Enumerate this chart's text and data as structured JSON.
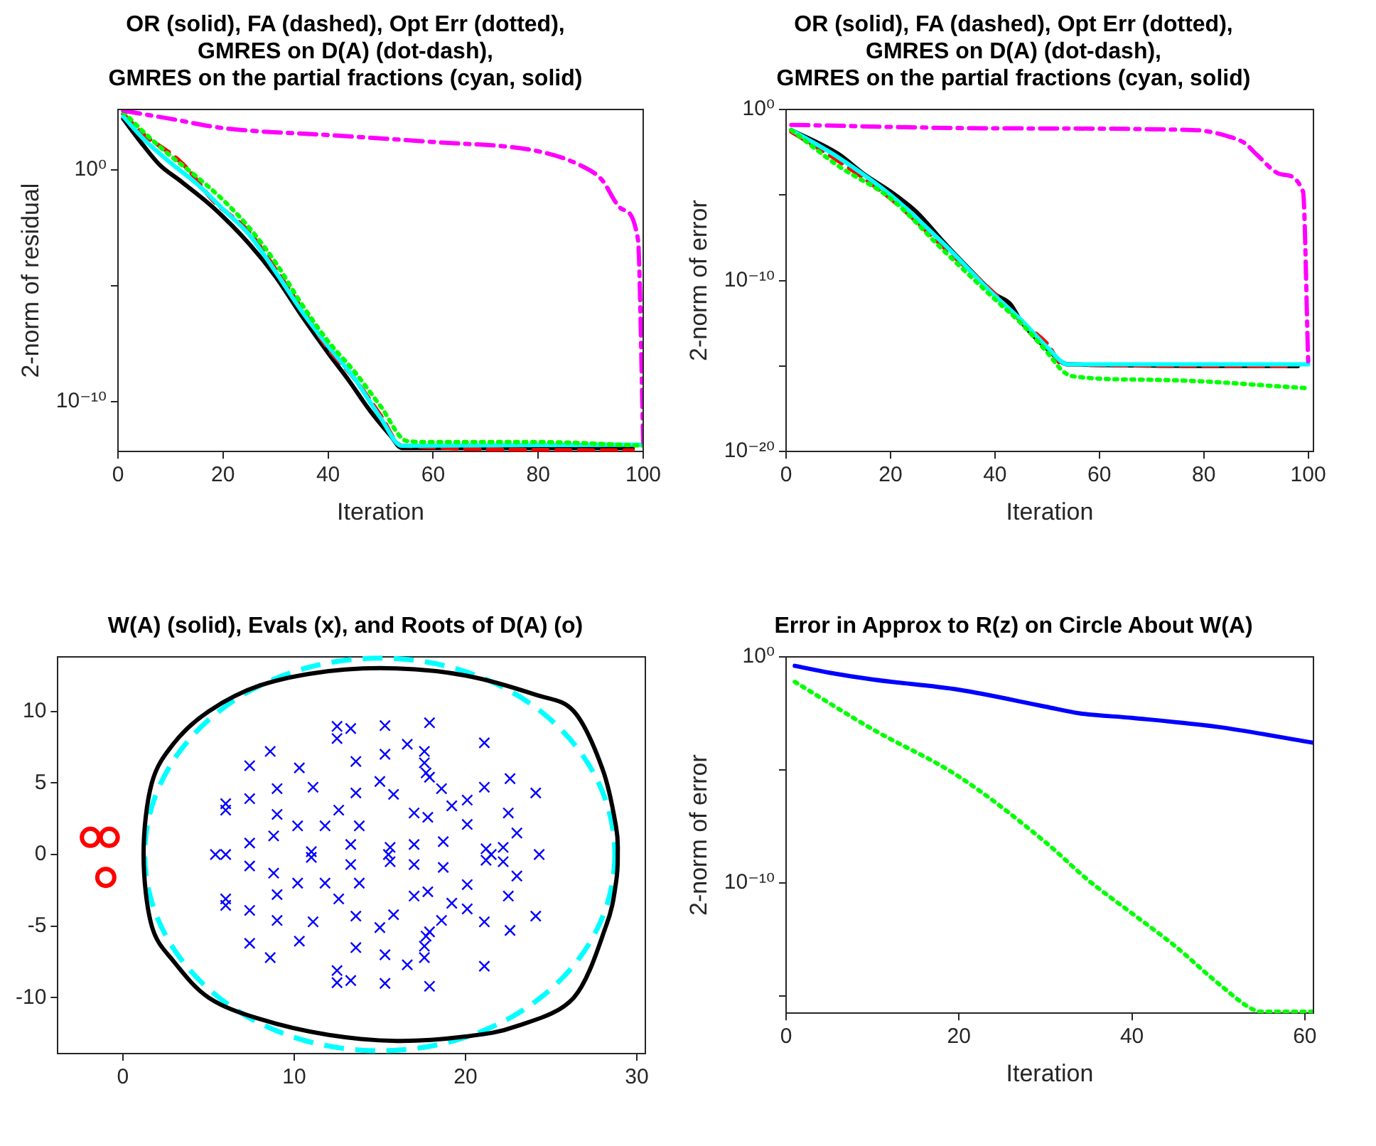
{
  "chart_data": [
    {
      "type": "line",
      "title": "OR (solid), FA (dashed), Opt Err (dotted),\nGMRES on D(A) (dot-dash),\nGMRES on the partial fractions (cyan, solid)",
      "xlabel": "Iteration",
      "ylabel": "2-norm of residual",
      "log": "y",
      "legend": false,
      "grid": false,
      "xlim": [
        0,
        100
      ],
      "xticks": [
        0,
        20,
        40,
        60,
        80,
        100
      ],
      "ylim": [
        7e-13,
        400
      ],
      "yticks": [
        {
          "value": 1,
          "label": "10⁰"
        },
        {
          "value": 1e-05,
          "label": null
        },
        {
          "value": 1e-10,
          "label": "10⁻¹⁰"
        }
      ],
      "series": [
        {
          "color": "#ff00ff",
          "line_style": "dashdot",
          "x": [
            1,
            10,
            20,
            40,
            60,
            80,
            88,
            92,
            96,
            99,
            100
          ],
          "values": [
            355,
            158,
            63,
            31.6,
            15.8,
            6.3,
            1.58,
            0.4,
            0.02,
            0.001,
            1.58e-12
          ]
        },
        {
          "color": "#00ff00",
          "line_style": "dotted",
          "x": [
            1,
            5,
            10,
            15,
            20,
            25,
            30,
            35,
            40,
            45,
            50,
            55,
            60,
            80,
            100
          ],
          "values": [
            316,
            40,
            4.0,
            0.5,
            0.05,
            0.00316,
            0.0001,
            1.58e-06,
            4e-08,
            2e-09,
            6.3e-11,
            2e-12,
            1.8e-12,
            1.8e-12,
            1.26e-12
          ]
        },
        {
          "color": "#00ffff",
          "line_style": "solid",
          "x": [
            1,
            5,
            10,
            15,
            20,
            25,
            30,
            35,
            40,
            45,
            50,
            54,
            100
          ],
          "values": [
            200,
            20,
            2.0,
            0.25,
            0.02,
            0.00158,
            4e-05,
            7.9e-07,
            2.5e-08,
            1e-09,
            2e-11,
            1.26e-12,
            1.4e-12
          ]
        },
        {
          "color": "#ff0000",
          "line_style": "dashed",
          "x": [
            1,
            5,
            10,
            13,
            18,
            25,
            30,
            35,
            40,
            45,
            50,
            54,
            98
          ],
          "values": [
            251,
            31.6,
            5.0,
            1.26,
            0.05,
            0.002,
            5e-05,
            1e-06,
            2e-08,
            1e-09,
            2.5e-11,
            1.26e-12,
            7.9e-13
          ]
        },
        {
          "color": "#000000",
          "line_style": "solid",
          "x": [
            1,
            5,
            8,
            12,
            18,
            25,
            30,
            35,
            40,
            44,
            48,
            52,
            54,
            98
          ],
          "values": [
            158,
            10,
            1.58,
            0.316,
            0.025,
            0.00063,
            2.5e-05,
            5e-07,
            1.26e-08,
            7.9e-10,
            4e-11,
            3.16e-12,
            1e-12,
            1e-12
          ]
        }
      ]
    },
    {
      "type": "line",
      "title": "OR (solid), FA (dashed), Opt Err (dotted),\nGMRES on D(A) (dot-dash),\nGMRES on the partial fractions (cyan, solid)",
      "xlabel": "Iteration",
      "ylabel": "2-norm of error",
      "log": "y",
      "legend": false,
      "grid": false,
      "xlim": [
        0,
        101
      ],
      "xticks": [
        0,
        20,
        40,
        60,
        80,
        100
      ],
      "ylim": [
        1e-20,
        1
      ],
      "yticks": [
        {
          "value": 1,
          "label": "10⁰"
        },
        {
          "value": 1e-05,
          "label": null
        },
        {
          "value": 1e-10,
          "label": "10⁻¹⁰"
        },
        {
          "value": 1e-15,
          "label": null
        },
        {
          "value": 1e-20,
          "label": "10⁻²⁰"
        }
      ],
      "series": [
        {
          "color": "#ff00ff",
          "line_style": "dashdot",
          "x": [
            1,
            40,
            78,
            85,
            88,
            90,
            95,
            99,
            100
          ],
          "values": [
            0.126,
            0.079,
            0.063,
            0.025,
            0.01,
            0.0025,
            0.000158,
            1.58e-05,
            1.26e-15
          ]
        },
        {
          "color": "#00ff00",
          "line_style": "dotted",
          "x": [
            1,
            10,
            20,
            30,
            40,
            45,
            50,
            53,
            55,
            70,
            80,
            95,
            100
          ],
          "values": [
            0.063,
            0.0005,
            6.3e-06,
            6.3e-09,
            7.9e-12,
            3.16e-13,
            6.3e-15,
            5e-16,
            2.5e-16,
            1.58e-16,
            1.26e-16,
            6.3e-17,
            5e-17
          ]
        },
        {
          "color": "#00ffff",
          "line_style": "solid",
          "x": [
            1,
            10,
            20,
            30,
            40,
            45,
            50,
            54,
            100
          ],
          "values": [
            0.063,
            0.00158,
            1e-05,
            1.58e-08,
            1.26e-11,
            5e-13,
            1.26e-14,
            1.26e-15,
            1.26e-15
          ]
        },
        {
          "color": "#ff0000",
          "line_style": "dashed",
          "x": [
            1,
            10,
            20,
            30,
            40,
            45,
            50,
            53,
            97
          ],
          "values": [
            0.05,
            0.001,
            6.3e-06,
            1e-08,
            1.58e-11,
            4e-13,
            2e-14,
            1.26e-15,
            1e-15
          ]
        },
        {
          "color": "#000000",
          "line_style": "solid",
          "x": [
            1,
            10,
            15,
            20,
            25,
            30,
            35,
            40,
            43,
            45,
            50,
            54,
            98
          ],
          "values": [
            0.063,
            0.0025,
            0.000158,
            1.58e-05,
            1e-06,
            2e-08,
            5e-10,
            1.58e-11,
            4e-12,
            4e-13,
            1e-14,
            1.26e-15,
            1e-15
          ]
        }
      ]
    },
    {
      "type": "scatter",
      "title": "W(A) (solid), Evals (x), and Roots of D(A) (o)",
      "legend": false,
      "grid": false,
      "xlim": [
        -3.8,
        30.5
      ],
      "xticks": [
        0,
        10,
        20,
        30
      ],
      "ylim": [
        -13.9,
        13.8
      ],
      "yticks": [
        -10,
        -5,
        0,
        5,
        10
      ],
      "series": [
        {
          "color": "#0000ff",
          "marker": "cross",
          "x": [
            6.0,
            6.0,
            7.4,
            7.4,
            7.4,
            8.6,
            9.0,
            9.0,
            8.8,
            10.3,
            11.1,
            10.2,
            11.8,
            12.5,
            12.5,
            13.3,
            13.6,
            13.6,
            12.6,
            13.8,
            13.3,
            15.3,
            15.3,
            15.0,
            15.8,
            15.6,
            17.9,
            16.6,
            17.6,
            17.6,
            17.7,
            17.9,
            18.6,
            17.0,
            17.8,
            17.0,
            18.7,
            19.2,
            20.1,
            21.1,
            21.1,
            20.1,
            22.6,
            24.1,
            22.5,
            23.0,
            22.2,
            21.2,
            11.0,
            6.0,
            6.0,
            7.4,
            7.4,
            7.4,
            8.6,
            9.0,
            9.0,
            8.8,
            10.3,
            11.1,
            10.2,
            11.8,
            12.5,
            12.5,
            13.3,
            13.6,
            13.6,
            12.6,
            13.8,
            13.3,
            15.3,
            15.3,
            15.0,
            15.8,
            15.6,
            17.9,
            16.6,
            17.6,
            17.6,
            17.7,
            17.9,
            18.6,
            17.0,
            17.8,
            17.0,
            18.7,
            19.2,
            20.1,
            21.1,
            21.1,
            20.1,
            22.6,
            24.1,
            22.5,
            23.0,
            22.2,
            21.2,
            11.0,
            5.4,
            6.0,
            15.5,
            21.5,
            24.3
          ],
          "values": [
            3.55,
            3.1,
            6.2,
            3.9,
            0.8,
            7.2,
            4.6,
            2.8,
            1.3,
            6.05,
            4.7,
            2.0,
            2.0,
            8.95,
            8.1,
            8.8,
            6.5,
            4.3,
            3.1,
            2.0,
            0.7,
            9.0,
            7.0,
            5.1,
            4.2,
            0.5,
            9.2,
            7.7,
            7.2,
            6.4,
            5.7,
            5.4,
            4.6,
            2.9,
            2.6,
            0.7,
            0.9,
            3.4,
            3.8,
            4.7,
            7.8,
            2.1,
            5.3,
            4.3,
            2.9,
            1.5,
            0.5,
            0.4,
            0.2,
            -3.55,
            -3.1,
            -6.2,
            -3.9,
            -0.8,
            -7.2,
            -4.6,
            -2.8,
            -1.3,
            -6.05,
            -4.7,
            -2.0,
            -2.0,
            -8.95,
            -8.1,
            -8.8,
            -6.5,
            -4.3,
            -3.1,
            -2.0,
            -0.7,
            -9.0,
            -7.0,
            -5.1,
            -4.2,
            -0.5,
            -9.2,
            -7.7,
            -7.2,
            -6.4,
            -5.7,
            -5.4,
            -4.6,
            -2.9,
            -2.6,
            -0.7,
            -0.9,
            -3.4,
            -3.8,
            -4.7,
            -7.8,
            -2.1,
            -5.3,
            -4.3,
            -2.9,
            -1.5,
            -0.5,
            -0.4,
            -0.2,
            0,
            0,
            0,
            0,
            0
          ]
        },
        {
          "color": "#ff0000",
          "marker": "circle",
          "x": [
            -1.9,
            -0.8,
            -1.0
          ],
          "values": [
            1.2,
            1.2,
            -1.6
          ]
        }
      ]
    },
    {
      "type": "line",
      "title": "Error in Approx to R(z) on Circle About W(A)",
      "xlabel": "Iteration",
      "ylabel": "2-norm of error",
      "log": "y",
      "legend": false,
      "grid": false,
      "xlim": [
        0,
        61
      ],
      "xticks": [
        0,
        20,
        40,
        60
      ],
      "ylim": [
        1.7e-16,
        1
      ],
      "yticks": [
        {
          "value": 1,
          "label": "10⁰"
        },
        {
          "value": 1e-05,
          "label": null
        },
        {
          "value": 1e-10,
          "label": "10⁻¹⁰"
        },
        {
          "value": 1e-15,
          "label": null
        }
      ],
      "series": [
        {
          "color": "#0000ff",
          "line_style": "solid",
          "x": [
            1,
            5,
            10,
            20,
            30,
            34,
            40,
            50,
            61
          ],
          "values": [
            0.4,
            0.2,
            0.1,
            0.035,
            0.0063,
            0.00316,
            0.002,
            0.00079,
            0.000158
          ]
        },
        {
          "color": "#00ff00",
          "line_style": "dotted",
          "x": [
            1,
            10,
            20,
            30,
            35,
            40,
            45,
            50,
            54,
            55,
            61
          ],
          "values": [
            0.079,
            0.00063,
            5e-06,
            6.3e-09,
            1.26e-10,
            4.5e-12,
            1.58e-13,
            3.5e-15,
            2.5e-16,
            2e-16,
            2e-16
          ]
        }
      ]
    }
  ]
}
